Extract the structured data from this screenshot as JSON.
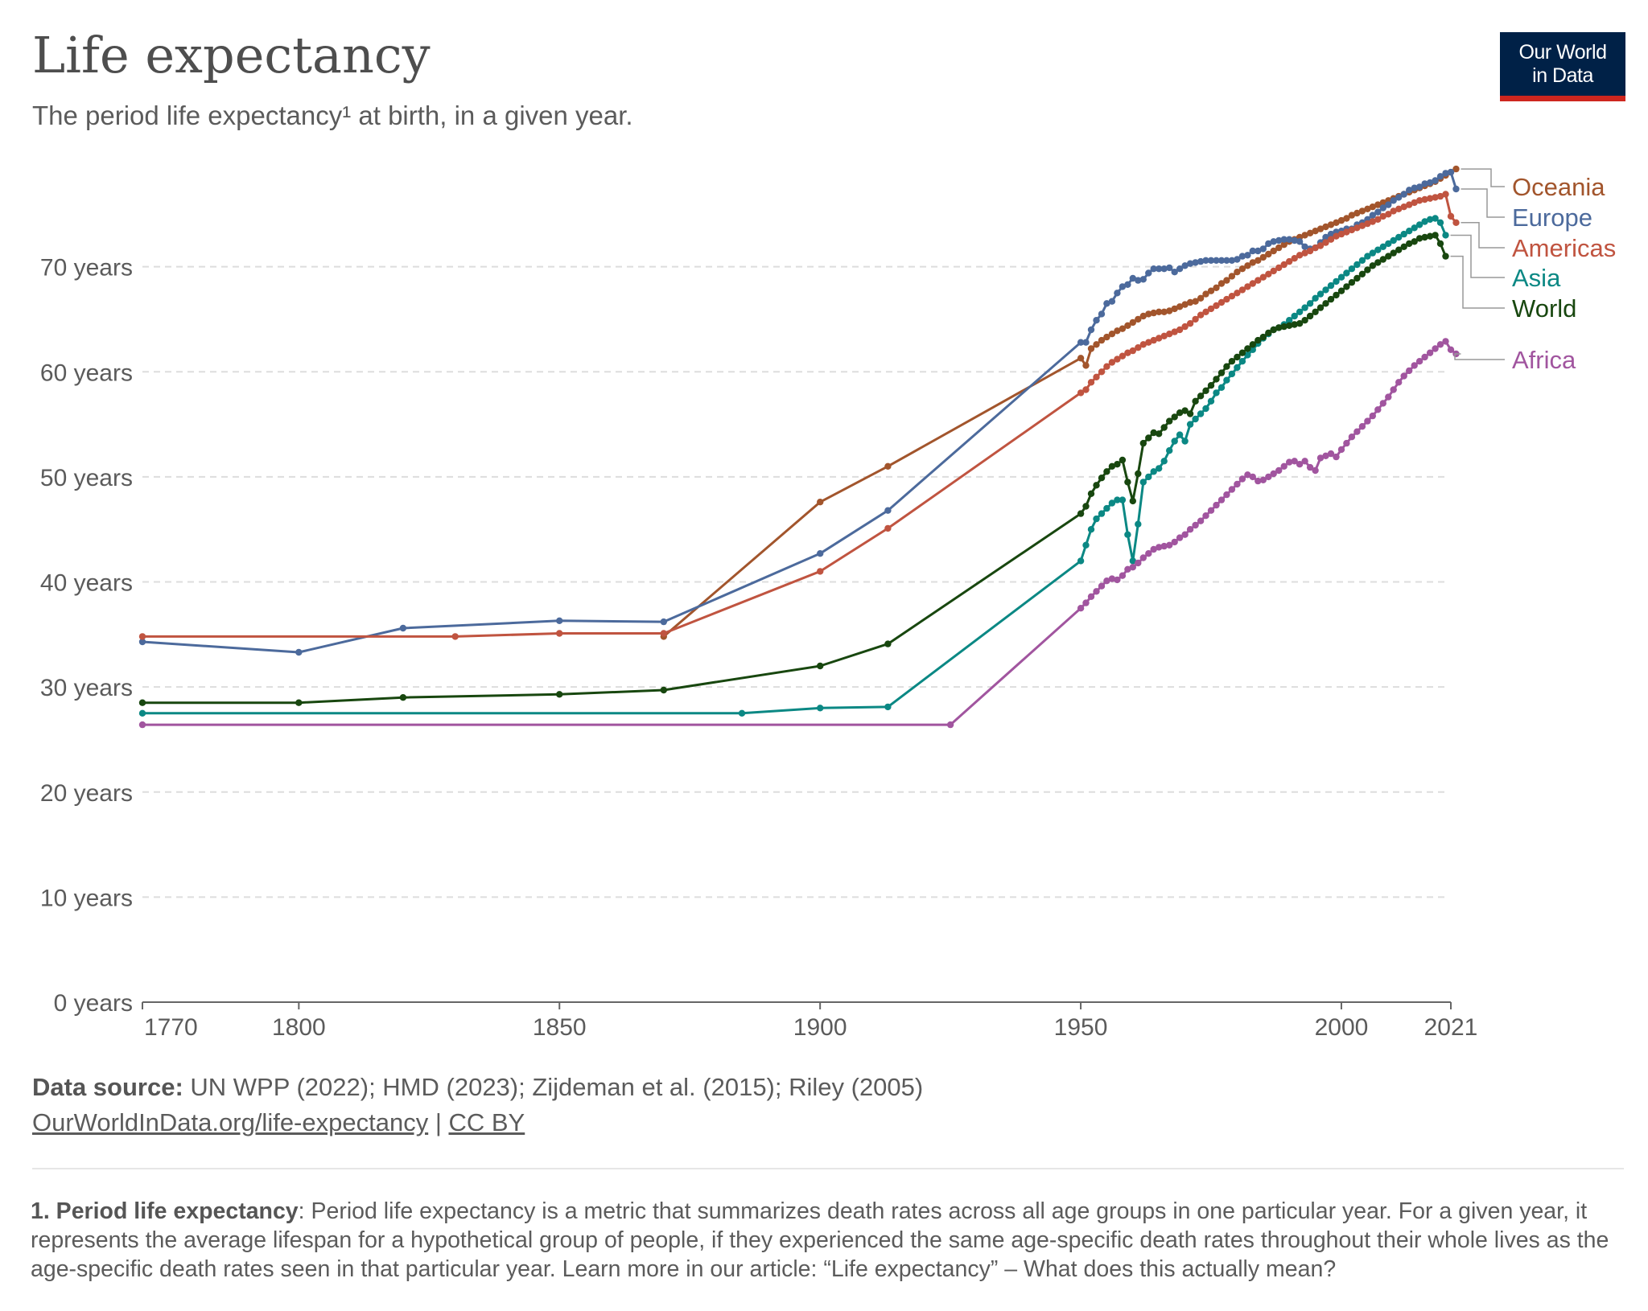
{
  "header": {
    "title": "Life expectancy",
    "subtitle": "The period life expectancy¹ at birth, in a given year.",
    "logo_line1": "Our World",
    "logo_line2": "in Data"
  },
  "colors": {
    "Oceania": "#a2552c",
    "Europe": "#4c6a9c",
    "Americas": "#c05440",
    "Asia": "#0b8884",
    "World": "#18470f",
    "Africa": "#a1559f",
    "grid": "#dddddd",
    "axis": "#666666",
    "label": "#5b5b5b"
  },
  "chart_data": {
    "type": "line",
    "title": "Life expectancy",
    "xlim": [
      1770,
      2021
    ],
    "ylim": [
      0,
      80
    ],
    "x_ticks": [
      1770,
      1800,
      1850,
      1900,
      1950,
      2000,
      2021
    ],
    "y_ticks": [
      0,
      10,
      20,
      30,
      40,
      50,
      60,
      70
    ],
    "y_tick_labels": [
      "0 years",
      "10 years",
      "20 years",
      "30 years",
      "40 years",
      "50 years",
      "60 years",
      "70 years"
    ],
    "grid": "horizontal dashed",
    "legend": "right, line-end labels",
    "series": [
      {
        "name": "Oceania",
        "color": "#a2552c",
        "sparse": [
          [
            1870,
            34.8
          ],
          [
            1900,
            47.6
          ],
          [
            1913,
            51.0
          ],
          [
            1950,
            61.3
          ]
        ],
        "annual": [
          61.3,
          60.6,
          62.2,
          62.6,
          63.0,
          63.3,
          63.6,
          63.9,
          64.1,
          64.4,
          64.7,
          65.0,
          65.3,
          65.5,
          65.6,
          65.7,
          65.7,
          65.8,
          66.0,
          66.2,
          66.4,
          66.6,
          66.7,
          67.0,
          67.4,
          67.7,
          68.0,
          68.4,
          68.7,
          69.1,
          69.5,
          69.8,
          70.1,
          70.4,
          70.6,
          70.9,
          71.2,
          71.5,
          71.8,
          72.1,
          72.4,
          72.6,
          72.8,
          73.0,
          73.2,
          73.4,
          73.6,
          73.8,
          74.0,
          74.2,
          74.4,
          74.6,
          74.9,
          75.1,
          75.3,
          75.5,
          75.7,
          75.9,
          76.1,
          76.3,
          76.5,
          76.7,
          76.9,
          77.1,
          77.3,
          77.5,
          77.7,
          77.9,
          78.1,
          78.4,
          78.7,
          79.0,
          79.3
        ]
      },
      {
        "name": "Europe",
        "color": "#4c6a9c",
        "sparse": [
          [
            1770,
            34.3
          ],
          [
            1800,
            33.3
          ],
          [
            1820,
            35.6
          ],
          [
            1850,
            36.3
          ],
          [
            1870,
            36.2
          ],
          [
            1900,
            42.7
          ],
          [
            1913,
            46.8
          ],
          [
            1950,
            62.8
          ]
        ],
        "annual": [
          62.8,
          62.8,
          64.0,
          64.9,
          65.5,
          66.5,
          66.7,
          67.5,
          68.1,
          68.3,
          68.9,
          68.7,
          68.8,
          69.4,
          69.8,
          69.8,
          69.8,
          69.9,
          69.5,
          69.8,
          70.1,
          70.3,
          70.4,
          70.5,
          70.6,
          70.6,
          70.6,
          70.6,
          70.6,
          70.6,
          70.7,
          71.0,
          71.1,
          71.5,
          71.5,
          71.7,
          72.2,
          72.4,
          72.5,
          72.6,
          72.6,
          72.5,
          72.4,
          71.9,
          71.7,
          71.8,
          72.3,
          72.8,
          73.1,
          73.3,
          73.4,
          73.6,
          73.6,
          74.0,
          74.2,
          74.5,
          74.9,
          75.2,
          75.6,
          75.9,
          76.3,
          76.6,
          76.9,
          77.3,
          77.5,
          77.6,
          77.9,
          78.0,
          78.2,
          78.6,
          78.9,
          79.0,
          77.4
        ]
      },
      {
        "name": "Americas",
        "color": "#c05440",
        "sparse": [
          [
            1770,
            34.8
          ],
          [
            1830,
            34.8
          ],
          [
            1850,
            35.1
          ],
          [
            1870,
            35.1
          ],
          [
            1900,
            41.0
          ],
          [
            1913,
            45.1
          ],
          [
            1950,
            58.0
          ]
        ],
        "annual": [
          58.0,
          58.3,
          59.0,
          59.5,
          60.0,
          60.5,
          60.9,
          61.2,
          61.5,
          61.8,
          62.0,
          62.3,
          62.6,
          62.8,
          63.0,
          63.2,
          63.4,
          63.6,
          63.8,
          64.0,
          64.3,
          64.6,
          65.0,
          65.4,
          65.7,
          66.0,
          66.3,
          66.6,
          66.9,
          67.2,
          67.5,
          67.8,
          68.1,
          68.4,
          68.7,
          69.0,
          69.3,
          69.6,
          69.9,
          70.2,
          70.5,
          70.8,
          71.1,
          71.3,
          71.5,
          71.8,
          72.0,
          72.3,
          72.6,
          72.9,
          73.1,
          73.3,
          73.5,
          73.7,
          73.9,
          74.1,
          74.3,
          74.5,
          74.8,
          75.0,
          75.3,
          75.5,
          75.7,
          75.9,
          76.1,
          76.3,
          76.4,
          76.5,
          76.6,
          76.7,
          76.9,
          74.8,
          74.2
        ]
      },
      {
        "name": "Asia",
        "color": "#0b8884",
        "sparse": [
          [
            1770,
            27.5
          ],
          [
            1885,
            27.5
          ],
          [
            1900,
            28.0
          ],
          [
            1913,
            28.1
          ],
          [
            1950,
            42.0
          ]
        ],
        "annual": [
          42.0,
          43.5,
          45.0,
          46.0,
          46.5,
          47.0,
          47.5,
          47.8,
          47.8,
          44.5,
          42.0,
          45.5,
          49.5,
          50.0,
          50.5,
          50.8,
          51.5,
          52.5,
          53.4,
          54.0,
          53.4,
          55.0,
          55.5,
          56.0,
          56.5,
          57.2,
          58.0,
          58.5,
          59.2,
          59.8,
          60.4,
          61.0,
          61.6,
          62.1,
          62.7,
          63.2,
          63.6,
          64.0,
          64.2,
          64.5,
          64.9,
          65.3,
          65.7,
          66.1,
          66.5,
          67.0,
          67.4,
          67.8,
          68.2,
          68.6,
          69.0,
          69.4,
          69.8,
          70.2,
          70.6,
          71.0,
          71.3,
          71.6,
          71.9,
          72.2,
          72.5,
          72.8,
          73.1,
          73.4,
          73.7,
          74.0,
          74.3,
          74.5,
          74.6,
          74.2,
          73.0
        ]
      },
      {
        "name": "World",
        "color": "#18470f",
        "sparse": [
          [
            1770,
            28.5
          ],
          [
            1800,
            28.5
          ],
          [
            1820,
            29.0
          ],
          [
            1850,
            29.3
          ],
          [
            1870,
            29.7
          ],
          [
            1900,
            32.0
          ],
          [
            1913,
            34.1
          ],
          [
            1950,
            46.5
          ]
        ],
        "annual": [
          46.5,
          47.2,
          48.4,
          49.2,
          49.9,
          50.5,
          51.0,
          51.2,
          51.6,
          49.5,
          47.7,
          50.3,
          53.2,
          53.7,
          54.2,
          54.1,
          54.7,
          55.3,
          55.7,
          56.1,
          56.3,
          56.0,
          57.2,
          57.7,
          58.2,
          58.7,
          59.3,
          59.9,
          60.5,
          61.0,
          61.4,
          61.8,
          62.2,
          62.6,
          63.0,
          63.3,
          63.7,
          64.0,
          64.2,
          64.3,
          64.4,
          64.5,
          64.6,
          64.9,
          65.3,
          65.7,
          66.1,
          66.5,
          66.9,
          67.3,
          67.7,
          68.1,
          68.5,
          68.9,
          69.3,
          69.7,
          70.1,
          70.4,
          70.7,
          71.0,
          71.3,
          71.6,
          71.9,
          72.2,
          72.4,
          72.7,
          72.8,
          72.9,
          73.0,
          72.2,
          71.0
        ]
      },
      {
        "name": "Africa",
        "color": "#a1559f",
        "sparse": [
          [
            1770,
            26.4
          ],
          [
            1925,
            26.4
          ],
          [
            1950,
            37.5
          ]
        ],
        "annual": [
          37.5,
          38.0,
          38.6,
          39.1,
          39.6,
          40.1,
          40.3,
          40.2,
          40.6,
          41.2,
          41.4,
          41.8,
          42.3,
          42.7,
          43.1,
          43.3,
          43.4,
          43.5,
          43.8,
          44.2,
          44.5,
          45.0,
          45.4,
          45.8,
          46.3,
          46.8,
          47.3,
          47.8,
          48.3,
          48.8,
          49.3,
          49.8,
          50.2,
          50.0,
          49.6,
          49.7,
          50.0,
          50.3,
          50.6,
          51.0,
          51.4,
          51.5,
          51.2,
          51.5,
          50.9,
          50.6,
          51.8,
          52.0,
          52.2,
          51.9,
          52.6,
          53.2,
          53.8,
          54.3,
          54.8,
          55.3,
          55.8,
          56.4,
          57.0,
          57.6,
          58.3,
          59.0,
          59.6,
          60.1,
          60.6,
          61.0,
          61.4,
          61.8,
          62.2,
          62.6,
          62.9,
          62.1,
          61.7
        ]
      }
    ]
  },
  "footer": {
    "source_label": "Data source:",
    "source_text": " UN WPP (2022); HMD (2023); Zijdeman et al. (2015); Riley (2005)",
    "link_url_text": "OurWorldInData.org/life-expectancy",
    "link_sep": " | ",
    "license": "CC BY",
    "note_label": "1. Period life expectancy",
    "note_text": ": Period life expectancy is a metric that summarizes death rates across all age groups in one particular year. For a given year, it represents the average lifespan for a hypothetical group of people, if they experienced the same age-specific death rates throughout their whole lives as the age-specific death rates seen in that particular year. Learn more in our article: “Life expectancy” – What does this actually mean?"
  }
}
